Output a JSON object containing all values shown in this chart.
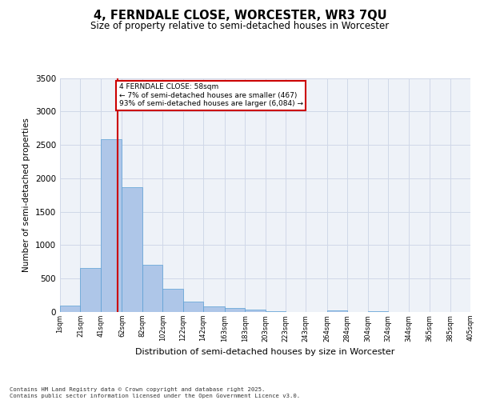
{
  "title1": "4, FERNDALE CLOSE, WORCESTER, WR3 7QU",
  "title2": "Size of property relative to semi-detached houses in Worcester",
  "xlabel": "Distribution of semi-detached houses by size in Worcester",
  "ylabel": "Number of semi-detached properties",
  "property_size": 58,
  "bin_edges": [
    1,
    21,
    41,
    62,
    82,
    102,
    122,
    142,
    163,
    183,
    203,
    223,
    243,
    264,
    284,
    304,
    324,
    344,
    365,
    385,
    405
  ],
  "bin_labels": [
    "1sqm",
    "21sqm",
    "41sqm",
    "62sqm",
    "82sqm",
    "102sqm",
    "122sqm",
    "142sqm",
    "163sqm",
    "183sqm",
    "203sqm",
    "223sqm",
    "243sqm",
    "264sqm",
    "284sqm",
    "304sqm",
    "324sqm",
    "344sqm",
    "365sqm",
    "385sqm",
    "405sqm"
  ],
  "values": [
    100,
    660,
    2580,
    1870,
    710,
    350,
    155,
    80,
    55,
    30,
    10,
    5,
    0,
    20,
    0,
    10,
    0,
    0,
    0,
    0
  ],
  "bar_color": "#aec6e8",
  "bar_edge_color": "#5a9fd4",
  "redline_x": 58,
  "annotation_text": "4 FERNDALE CLOSE: 58sqm\n← 7% of semi-detached houses are smaller (467)\n93% of semi-detached houses are larger (6,084) →",
  "annotation_box_color": "#ffffff",
  "annotation_box_edge": "#cc0000",
  "grid_color": "#d0d8e8",
  "background_color": "#eef2f8",
  "footer1": "Contains HM Land Registry data © Crown copyright and database right 2025.",
  "footer2": "Contains public sector information licensed under the Open Government Licence v3.0.",
  "ylim": [
    0,
    3500
  ],
  "yticks": [
    0,
    500,
    1000,
    1500,
    2000,
    2500,
    3000,
    3500
  ]
}
